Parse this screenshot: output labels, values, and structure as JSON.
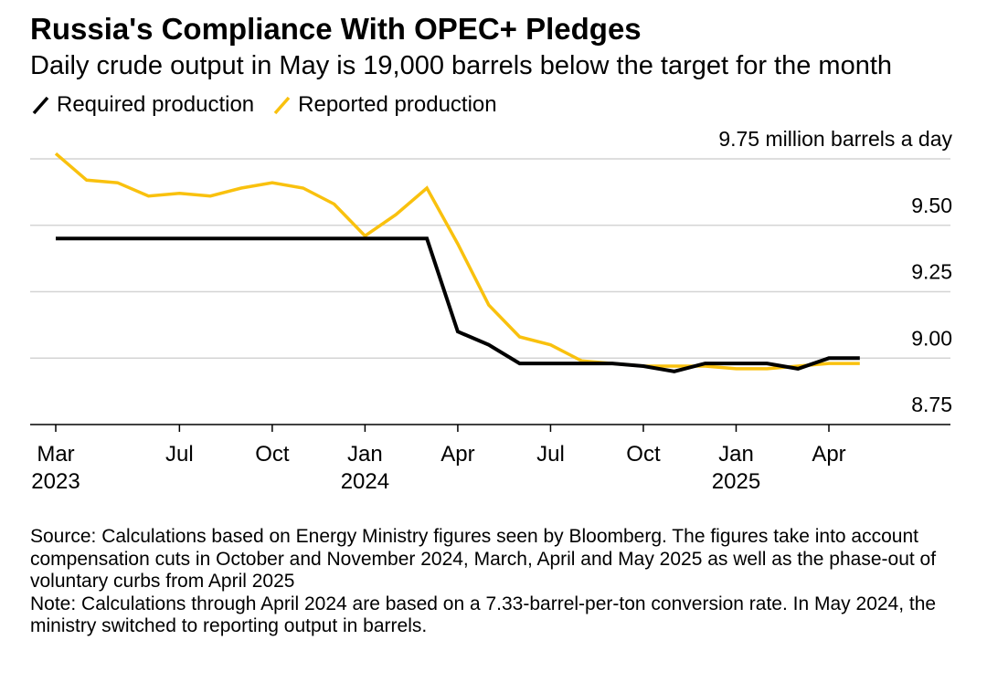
{
  "chart_data": {
    "type": "line",
    "title": "Russia's Compliance With OPEC+ Pledges",
    "subtitle": "Daily crude output in May is 19,000 barrels below the target for the month",
    "x": [
      "2023-03",
      "2023-04",
      "2023-05",
      "2023-06",
      "2023-07",
      "2023-08",
      "2023-09",
      "2023-10",
      "2023-11",
      "2023-12",
      "2024-01",
      "2024-02",
      "2024-03",
      "2024-04",
      "2024-05",
      "2024-06",
      "2024-07",
      "2024-08",
      "2024-09",
      "2024-10",
      "2024-11",
      "2024-12",
      "2025-01",
      "2025-02",
      "2025-03",
      "2025-04",
      "2025-05"
    ],
    "series": [
      {
        "name": "Required production",
        "color": "#000000",
        "values": [
          9.45,
          9.45,
          9.45,
          9.45,
          9.45,
          9.45,
          9.45,
          9.45,
          9.45,
          9.45,
          9.45,
          9.45,
          9.45,
          9.1,
          9.05,
          8.98,
          8.98,
          8.98,
          8.98,
          8.97,
          8.95,
          8.98,
          8.98,
          8.98,
          8.96,
          9.0,
          9.0
        ]
      },
      {
        "name": "Reported production",
        "color": "#f9c10e",
        "values": [
          9.77,
          9.67,
          9.66,
          9.61,
          9.62,
          9.61,
          9.64,
          9.66,
          9.64,
          9.58,
          9.46,
          9.54,
          9.64,
          9.43,
          9.2,
          9.08,
          9.05,
          8.99,
          8.98,
          8.97,
          8.97,
          8.97,
          8.96,
          8.96,
          8.97,
          8.98,
          8.98
        ]
      }
    ],
    "ylim": [
      8.75,
      9.75
    ],
    "yticks": [
      {
        "value": 8.75,
        "label": "8.75"
      },
      {
        "value": 9.0,
        "label": "9.00"
      },
      {
        "value": 9.25,
        "label": "9.25"
      },
      {
        "value": 9.5,
        "label": "9.50"
      },
      {
        "value": 9.75,
        "label": "9.75 million barrels a day"
      }
    ],
    "xticks": [
      {
        "date": "2023-03",
        "label": "Mar",
        "year": "2023"
      },
      {
        "date": "2023-07",
        "label": "Jul"
      },
      {
        "date": "2023-10",
        "label": "Oct"
      },
      {
        "date": "2024-01",
        "label": "Jan",
        "year": "2024"
      },
      {
        "date": "2024-04",
        "label": "Apr"
      },
      {
        "date": "2024-07",
        "label": "Jul"
      },
      {
        "date": "2024-10",
        "label": "Oct"
      },
      {
        "date": "2025-01",
        "label": "Jan",
        "year": "2025"
      },
      {
        "date": "2025-04",
        "label": "Apr"
      }
    ],
    "grid": true,
    "legend": "top-left"
  },
  "footnotes": {
    "source": "Source: Calculations based on Energy Ministry figures seen by Bloomberg. The figures take into account compensation cuts in October and November 2024, March, April and May 2025 as well as the phase-out of voluntary curbs from April 2025",
    "note": "Note: Calculations through April 2024 are based on a 7.33-barrel-per-ton conversion rate. In May 2024, the ministry switched to reporting output in barrels."
  }
}
